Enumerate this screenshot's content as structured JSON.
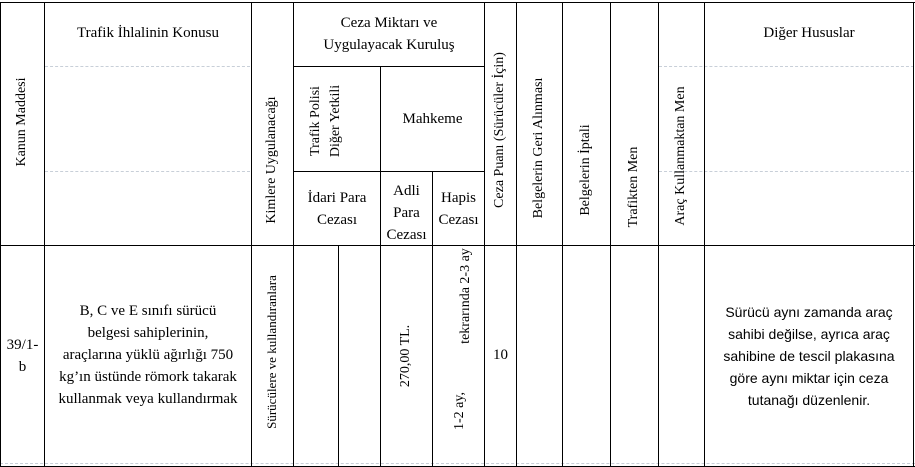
{
  "headers": {
    "kanun_maddesi": "Kanun Maddesi",
    "konu": "Trafik İhlalinin Konusu",
    "kimlere": "Kimlere Uygulanacağı",
    "ceza_line1": "Ceza Miktarı ve",
    "ceza_line2": "Uygulayacak Kuruluş",
    "trafik_polisi_line1": "Trafik Polisi",
    "trafik_polisi_line2": "Diğer Yetkili",
    "mahkeme": "Mahkeme",
    "idari_line1": "İdari Para",
    "idari_line2": "Cezası",
    "adli_line1": "Adli",
    "adli_line2": "Para",
    "adli_line3": "Cezası",
    "hapis_line1": "Hapis",
    "hapis_line2": "Cezası",
    "ceza_puani": "Ceza Puanı (Sürücüler İçin)",
    "belge_geri": "Belgelerin Geri Alınması",
    "belge_iptal": "Belgelerin İptali",
    "trafikten_men": "Trafikten Men",
    "arac_men": "Araç Kullanmaktan Men",
    "diger": "Diğer Hususlar"
  },
  "row": {
    "madde_line1": "39/1-",
    "madde_line2": "b",
    "konu_lines": [
      "B, C ve E sınıfı sürücü",
      "belgesi sahiplerinin,",
      "araçlarına yüklü ağırlığı 750",
      "kg’ın üstünde römork takarak",
      "kullanmak veya kullandırmak"
    ],
    "kimlere": "Sürücülere ve kullandıranlara",
    "adli_para": "270,00 TL.",
    "hapis_line1": "tekrarında 2-3 ay",
    "hapis_line2": "1-2 ay,",
    "ceza_puani": "10",
    "diger_lines": [
      "Sürücü aynı zamanda araç",
      "sahibi değilse, ayrıca araç",
      "sahibine de tescil plakasına",
      "göre aynı miktar için ceza",
      "tutanağı düzenlenir."
    ]
  }
}
